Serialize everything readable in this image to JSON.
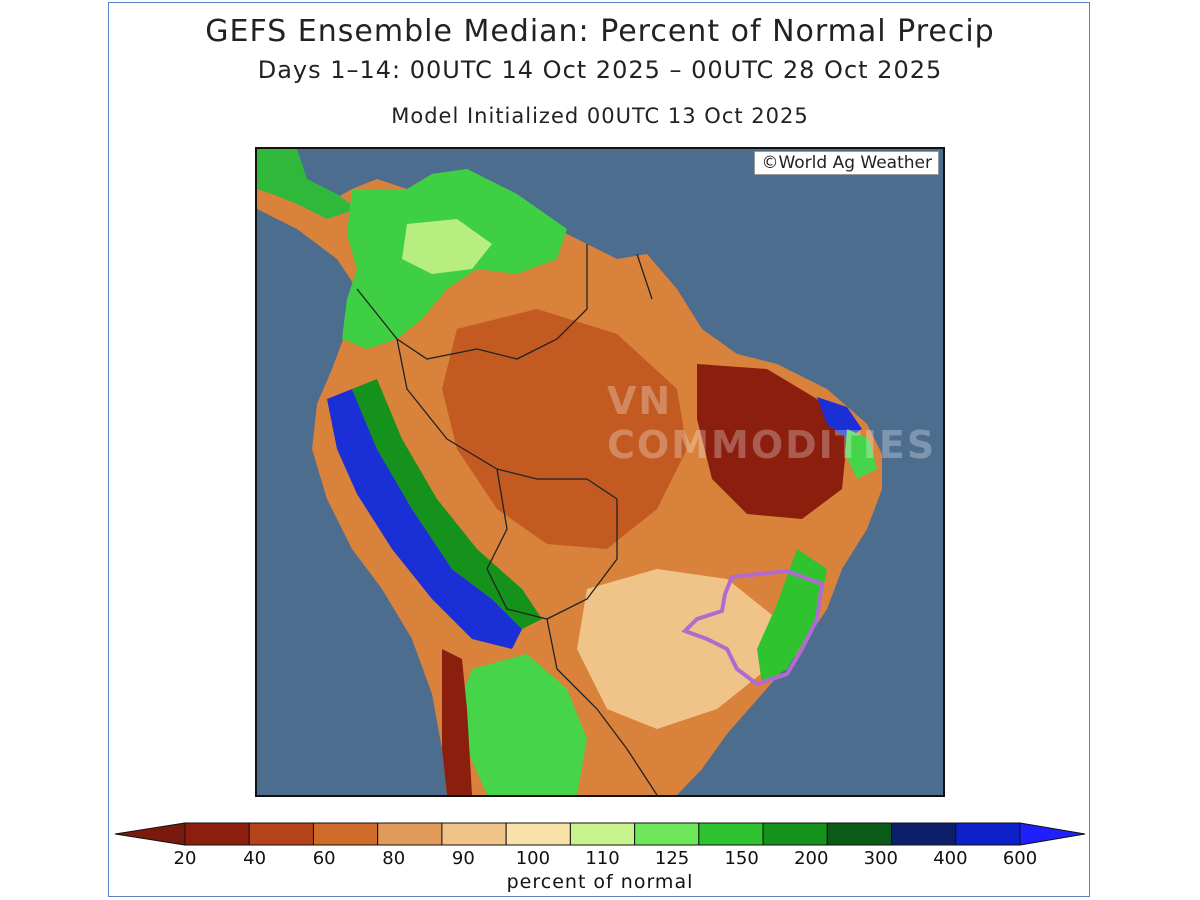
{
  "title": "GEFS Ensemble Median: Percent of Normal Precip",
  "subtitle": "Days 1–14: 00UTC 14 Oct 2025 – 00UTC 28 Oct 2025",
  "init": "Model Initialized 00UTC 13 Oct 2025",
  "credit": "©World Ag Weather",
  "watermark": "VN COMMODITIES",
  "legend": {
    "unit": "percent of normal",
    "ticks": [
      "20",
      "40",
      "60",
      "80",
      "90",
      "100",
      "110",
      "125",
      "150",
      "200",
      "300",
      "400",
      "600"
    ],
    "colors": [
      "#8b1e0d",
      "#b4431a",
      "#cf6c2a",
      "#e09a5a",
      "#f0c488",
      "#f8e2a8",
      "#c8f28c",
      "#6ee65a",
      "#2fc42f",
      "#15921c",
      "#0c5a18",
      "#0d1f6b",
      "#0c22c8",
      "#2222ff"
    ],
    "low_color": "#7a1a0e",
    "high_color": "#2020ff"
  },
  "colors": {
    "ocean": "#4d6d8f",
    "land_dry_dark": "#8b1e0d",
    "land_dry": "#c25a22",
    "land_warm": "#d9823c",
    "land_tan": "#eab07a",
    "land_light": "#f5d9a0",
    "wet_light": "#b8ee80",
    "wet": "#45d44a",
    "wet_dark": "#12881c",
    "very_wet": "#1a2fd6",
    "region_outline": "#b06ad0"
  }
}
